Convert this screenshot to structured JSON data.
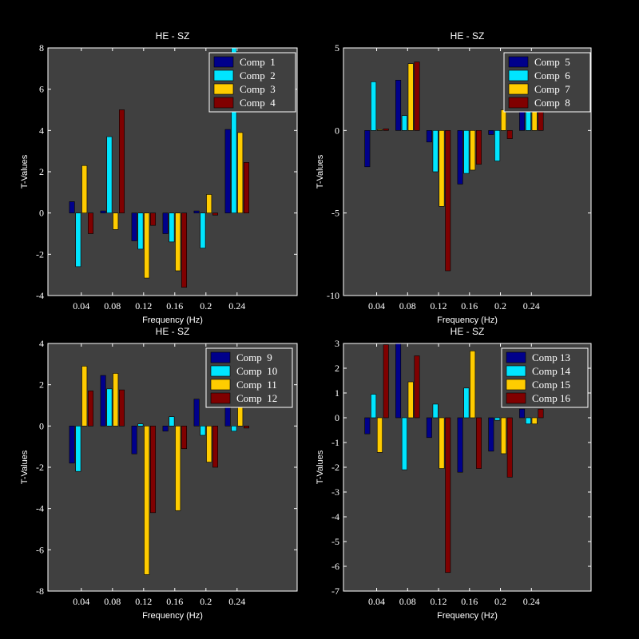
{
  "chart_data": [
    {
      "type": "bar",
      "title": "HE - SZ",
      "xlabel": "Frequency (Hz)",
      "ylabel": "T-Values",
      "categories": [
        "0.04",
        "0.08",
        "0.12",
        "0.16",
        "0.2",
        "0.24"
      ],
      "ylim": [
        -4,
        8
      ],
      "yticks": [
        -4,
        -2,
        0,
        2,
        4,
        6,
        8
      ],
      "legend_position": "top-right",
      "series": [
        {
          "name": "Comp  1",
          "color": "#00008B",
          "values": [
            0.55,
            0.1,
            -1.35,
            -1.0,
            0.1,
            4.05
          ]
        },
        {
          "name": "Comp  2",
          "color": "#00E5FF",
          "values": [
            -2.6,
            3.7,
            -1.75,
            -1.4,
            -1.7,
            8.0
          ]
        },
        {
          "name": "Comp  3",
          "color": "#FFCC00",
          "values": [
            2.3,
            -0.8,
            -3.15,
            -2.8,
            0.9,
            3.9
          ]
        },
        {
          "name": "Comp  4",
          "color": "#800000",
          "values": [
            -1.0,
            5.0,
            -0.6,
            -3.6,
            -0.1,
            2.45
          ]
        }
      ]
    },
    {
      "type": "bar",
      "title": "HE - SZ",
      "xlabel": "Frequency (Hz)",
      "ylabel": "T-Values",
      "categories": [
        "0.04",
        "0.08",
        "0.12",
        "0.16",
        "0.2",
        "0.24"
      ],
      "ylim": [
        -10,
        5
      ],
      "yticks": [
        -10,
        -5,
        0,
        5
      ],
      "legend_position": "top-right",
      "series": [
        {
          "name": "Comp  5",
          "color": "#00008B",
          "values": [
            -2.2,
            3.05,
            -0.7,
            -3.25,
            -0.25,
            1.2
          ]
        },
        {
          "name": "Comp  6",
          "color": "#00E5FF",
          "values": [
            2.95,
            0.9,
            -2.5,
            -2.6,
            -1.85,
            1.2
          ]
        },
        {
          "name": "Comp  7",
          "color": "#FFCC00",
          "values": [
            0.05,
            4.05,
            -4.6,
            -2.4,
            1.25,
            1.2
          ]
        },
        {
          "name": "Comp  8",
          "color": "#800000",
          "values": [
            0.1,
            4.15,
            -8.5,
            -2.05,
            -0.5,
            1.2
          ]
        }
      ]
    },
    {
      "type": "bar",
      "title": "HE - SZ",
      "xlabel": "Frequency (Hz)",
      "ylabel": "T-Values",
      "categories": [
        "0.04",
        "0.08",
        "0.12",
        "0.16",
        "0.2",
        "0.24"
      ],
      "ylim": [
        -8,
        4
      ],
      "yticks": [
        -8,
        -6,
        -4,
        -2,
        0,
        2,
        4
      ],
      "legend_position": "top-right",
      "series": [
        {
          "name": "Comp  9",
          "color": "#00008B",
          "values": [
            -1.8,
            2.45,
            -1.35,
            -0.25,
            1.3,
            0.9
          ]
        },
        {
          "name": "Comp  10",
          "color": "#00E5FF",
          "values": [
            -2.2,
            1.8,
            0.1,
            0.45,
            -0.45,
            -0.25
          ]
        },
        {
          "name": "Comp  11",
          "color": "#FFCC00",
          "values": [
            2.9,
            2.55,
            -7.2,
            -4.1,
            -1.75,
            0.9
          ]
        },
        {
          "name": "Comp  12",
          "color": "#800000",
          "values": [
            1.7,
            1.75,
            -4.2,
            -1.1,
            -2.0,
            -0.1
          ]
        }
      ]
    },
    {
      "type": "bar",
      "title": "HE - SZ",
      "xlabel": "Frequency (Hz)",
      "ylabel": "T-Values",
      "categories": [
        "0.04",
        "0.08",
        "0.12",
        "0.16",
        "0.2",
        "0.24"
      ],
      "ylim": [
        -7,
        3
      ],
      "yticks": [
        -7,
        -6,
        -5,
        -4,
        -3,
        -2,
        -1,
        0,
        1,
        2,
        3
      ],
      "legend_position": "top-right",
      "series": [
        {
          "name": "Comp 13",
          "color": "#00008B",
          "values": [
            -0.65,
            3.0,
            -0.8,
            -2.2,
            -1.35,
            0.35
          ]
        },
        {
          "name": "Comp 14",
          "color": "#00E5FF",
          "values": [
            0.95,
            -2.1,
            0.55,
            1.2,
            -0.1,
            -0.25
          ]
        },
        {
          "name": "Comp 15",
          "color": "#FFCC00",
          "values": [
            -1.4,
            1.45,
            -2.05,
            2.7,
            -1.45,
            -0.25
          ]
        },
        {
          "name": "Comp 16",
          "color": "#800000",
          "values": [
            2.95,
            2.5,
            -6.25,
            -2.05,
            -2.4,
            0.35
          ]
        }
      ]
    }
  ]
}
